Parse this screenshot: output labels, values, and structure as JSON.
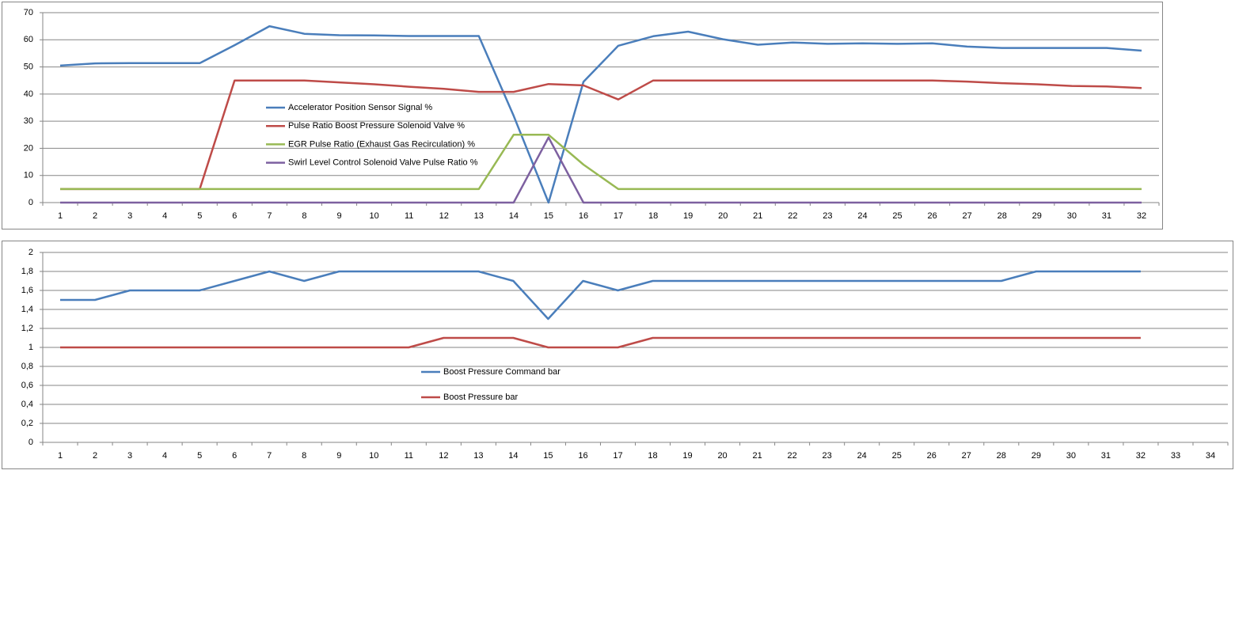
{
  "chart_data": [
    {
      "type": "line",
      "categories": [
        1,
        2,
        3,
        4,
        5,
        6,
        7,
        8,
        9,
        10,
        11,
        12,
        13,
        14,
        15,
        16,
        17,
        18,
        19,
        20,
        21,
        22,
        23,
        24,
        25,
        26,
        27,
        28,
        29,
        30,
        31,
        32
      ],
      "ylim": [
        0,
        70
      ],
      "yticks": [
        0,
        10,
        20,
        30,
        40,
        50,
        60,
        70
      ],
      "grid": true,
      "series": [
        {
          "name": "Accelerator Position Sensor Signal %",
          "color": "#4a7ebb",
          "values": [
            50.5,
            51.3,
            51.4,
            51.4,
            51.4,
            58,
            65,
            62.2,
            61.7,
            61.6,
            61.4,
            61.4,
            61.4,
            32,
            0,
            44.5,
            57.8,
            61.3,
            63,
            60.2,
            58.2,
            59,
            58.5,
            58.7,
            58.5,
            58.7,
            57.5,
            57,
            57,
            57,
            57,
            56
          ]
        },
        {
          "name": "Pulse Ratio Boost Pressure Solenoid Valve %",
          "color": "#be4b48",
          "values": [
            5,
            5,
            5,
            5,
            5,
            45,
            45,
            45,
            44.3,
            43.6,
            42.7,
            41.9,
            40.8,
            40.8,
            43.7,
            43.2,
            38,
            45,
            45,
            45,
            45,
            45,
            45,
            45,
            45,
            45,
            44.6,
            44,
            43.6,
            43,
            42.8,
            42.2
          ]
        },
        {
          "name": "EGR Pulse Ratio (Exhaust Gas Recirculation) %",
          "color": "#98b954",
          "values": [
            5,
            5,
            5,
            5,
            5,
            5,
            5,
            5,
            5,
            5,
            5,
            5,
            5,
            25,
            25,
            14,
            5,
            5,
            5,
            5,
            5,
            5,
            5,
            5,
            5,
            5,
            5,
            5,
            5,
            5,
            5,
            5
          ]
        },
        {
          "name": "Swirl Level Control Solenoid Valve Pulse Ratio %",
          "color": "#7d60a0",
          "values": [
            0,
            0,
            0,
            0,
            0,
            0,
            0,
            0,
            0,
            0,
            0,
            0,
            0,
            0,
            24,
            0,
            0,
            0,
            0,
            0,
            0,
            0,
            0,
            0,
            0,
            0,
            0,
            0,
            0,
            0,
            0,
            0
          ]
        }
      ]
    },
    {
      "type": "line",
      "categories": [
        1,
        2,
        3,
        4,
        5,
        6,
        7,
        8,
        9,
        10,
        11,
        12,
        13,
        14,
        15,
        16,
        17,
        18,
        19,
        20,
        21,
        22,
        23,
        24,
        25,
        26,
        27,
        28,
        29,
        30,
        31,
        32,
        33,
        34
      ],
      "ylim": [
        0,
        2
      ],
      "yticks": [
        0,
        {
          "value": 0.2,
          "label": "0,2"
        },
        {
          "value": 0.4,
          "label": "0,4"
        },
        {
          "value": 0.6,
          "label": "0,6"
        },
        {
          "value": 0.8,
          "label": "0,8"
        },
        1,
        {
          "value": 1.2,
          "label": "1,2"
        },
        {
          "value": 1.4,
          "label": "1,4"
        },
        {
          "value": 1.6,
          "label": "1,6"
        },
        {
          "value": 1.8,
          "label": "1,8"
        },
        2
      ],
      "grid": true,
      "series": [
        {
          "name": "Boost Pressure Command  bar",
          "color": "#4a7ebb",
          "values": [
            1.5,
            1.5,
            1.6,
            1.6,
            1.6,
            1.7,
            1.8,
            1.7,
            1.8,
            1.8,
            1.8,
            1.8,
            1.8,
            1.7,
            1.3,
            1.7,
            1.6,
            1.7,
            1.7,
            1.7,
            1.7,
            1.7,
            1.7,
            1.7,
            1.7,
            1.7,
            1.7,
            1.7,
            1.8,
            1.8,
            1.8,
            1.8,
            null,
            null
          ]
        },
        {
          "name": "Boost Pressure bar",
          "color": "#be4b48",
          "values": [
            1,
            1,
            1,
            1,
            1,
            1,
            1,
            1,
            1,
            1,
            1,
            1.1,
            1.1,
            1.1,
            1,
            1,
            1,
            1.1,
            1.1,
            1.1,
            1.1,
            1.1,
            1.1,
            1.1,
            1.1,
            1.1,
            1.1,
            1.1,
            1.1,
            1.1,
            1.1,
            1.1,
            null,
            null
          ]
        }
      ]
    }
  ]
}
